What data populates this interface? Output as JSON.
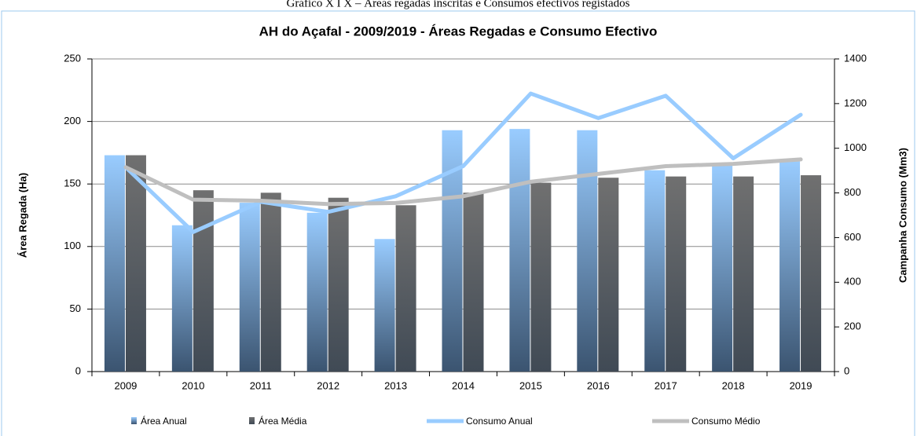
{
  "caption": "Gráfico X I X – Áreas regadas inscritas e Consumos efectivos registados",
  "chart_data": {
    "type": "bar-line",
    "title": "AH do Açafal - 2009/2019  - Áreas Regadas e Consumo Efectivo",
    "y_label": "Área Regada (Ha)",
    "y2_label": "Campanha Consumo (Mm3)",
    "categories": [
      "2009",
      "2010",
      "2011",
      "2012",
      "2013",
      "2014",
      "2015",
      "2016",
      "2017",
      "2018",
      "2019"
    ],
    "series": [
      {
        "name": "Área Anual",
        "type": "bar",
        "color": "#99ccff",
        "values": [
          173,
          117,
          135,
          127,
          106,
          193,
          194,
          193,
          161,
          165,
          168
        ]
      },
      {
        "name": "Área Média",
        "type": "bar",
        "color": "#707070",
        "values": [
          173,
          145,
          143,
          139,
          133,
          143,
          151,
          155,
          156,
          156,
          157
        ]
      },
      {
        "name": "Consumo Anual",
        "type": "line",
        "axis": "y2",
        "color": "#99ccff",
        "values": [
          915,
          625,
          760,
          715,
          785,
          920,
          1245,
          1135,
          1235,
          955,
          1150
        ]
      },
      {
        "name": "Consumo Médio",
        "type": "line",
        "axis": "y2",
        "color": "#bfbfbf",
        "values": [
          915,
          770,
          765,
          750,
          755,
          785,
          850,
          885,
          920,
          930,
          950
        ]
      }
    ],
    "ylim": [
      0,
      250
    ],
    "yticks": [
      0,
      50,
      100,
      150,
      200,
      250
    ],
    "y2lim": [
      0,
      1400
    ],
    "y2ticks": [
      0,
      200,
      400,
      600,
      800,
      1000,
      1200,
      1400
    ],
    "grid": true,
    "legend": "bottom"
  }
}
